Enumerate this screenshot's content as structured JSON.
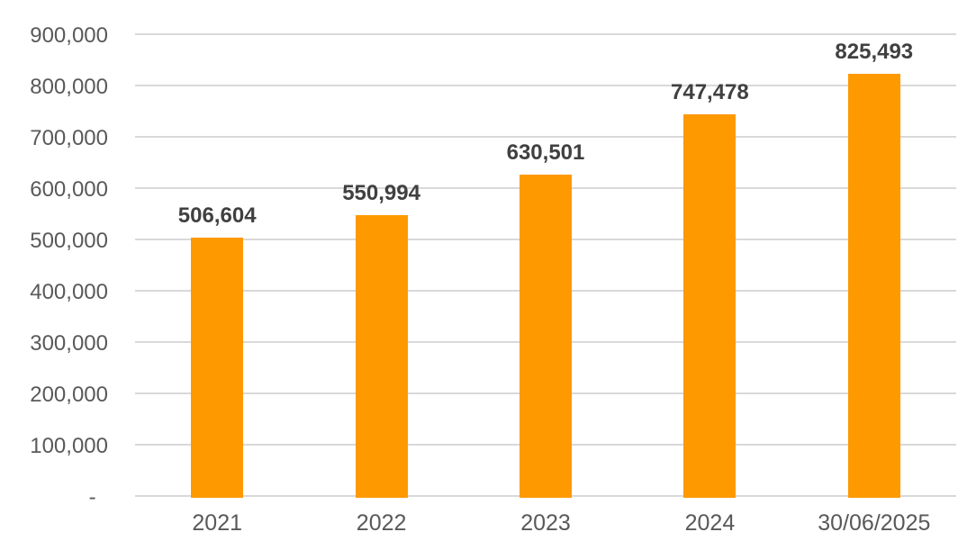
{
  "chart_data": {
    "type": "bar",
    "categories": [
      "2021",
      "2022",
      "2023",
      "2024",
      "30/06/2025"
    ],
    "values": [
      506604,
      550994,
      630501,
      747478,
      825493
    ],
    "data_labels": [
      "506,604",
      "550,994",
      "630,501",
      "747,478",
      "825,493"
    ],
    "title": "",
    "xlabel": "",
    "ylabel": "",
    "ylim": [
      0,
      900000
    ],
    "ytick_interval": 100000,
    "ytick_labels": [
      "-  ",
      "100,000",
      "200,000",
      "300,000",
      "400,000",
      "500,000",
      "600,000",
      "700,000",
      "800,000",
      "900,000"
    ],
    "grid": true,
    "legend": false,
    "colors": {
      "bar": "#FF9900",
      "data_label": "#404040",
      "axis_text": "#595959",
      "gridline": "#D9D9D9",
      "background": "#FFFFFF"
    }
  }
}
